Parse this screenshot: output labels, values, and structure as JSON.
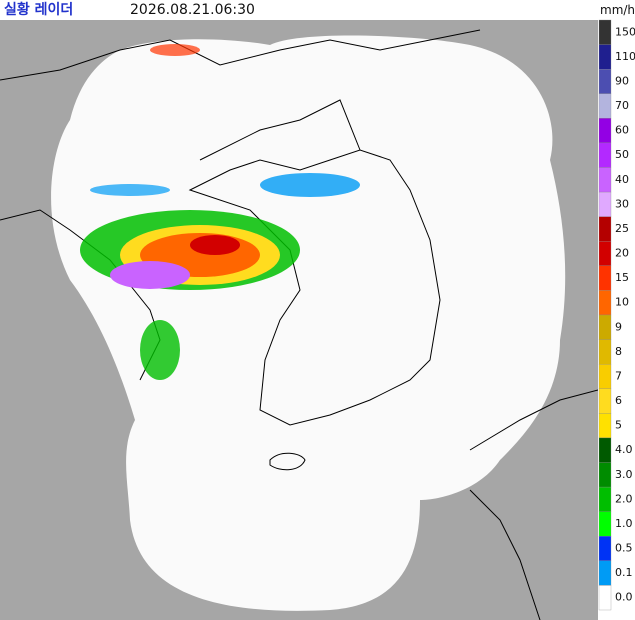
{
  "header": {
    "title": "실황 레이더",
    "timestamp": "2026.08.21.06:30",
    "unit": "mm/h"
  },
  "legend": [
    {
      "label": "150",
      "color": "#333333"
    },
    {
      "label": "110",
      "color": "#1f1f8f"
    },
    {
      "label": "90",
      "color": "#4c4eb1"
    },
    {
      "label": "70",
      "color": "#b3b4de"
    },
    {
      "label": "60",
      "color": "#9300e4"
    },
    {
      "label": "50",
      "color": "#b329ff"
    },
    {
      "label": "40",
      "color": "#c963ff"
    },
    {
      "label": "30",
      "color": "#e0a9ff"
    },
    {
      "label": "25",
      "color": "#b40000"
    },
    {
      "label": "20",
      "color": "#d20000"
    },
    {
      "label": "15",
      "color": "#ff3300"
    },
    {
      "label": "10",
      "color": "#ff6600"
    },
    {
      "label": "9",
      "color": "#ccaa00"
    },
    {
      "label": "8",
      "color": "#e0b900"
    },
    {
      "label": "7",
      "color": "#f9cd00"
    },
    {
      "label": "6",
      "color": "#ffdc1f"
    },
    {
      "label": "5",
      "color": "#ffe100"
    },
    {
      "label": "4.0",
      "color": "#005a00"
    },
    {
      "label": "3.0",
      "color": "#008c00"
    },
    {
      "label": "2.0",
      "color": "#00be00"
    },
    {
      "label": "1.0",
      "color": "#00ff00"
    },
    {
      "label": "0.5",
      "color": "#0033f5"
    },
    {
      "label": "0.1",
      "color": "#009bf5"
    },
    {
      "label": "0.0",
      "color": "#ffffff"
    }
  ]
}
